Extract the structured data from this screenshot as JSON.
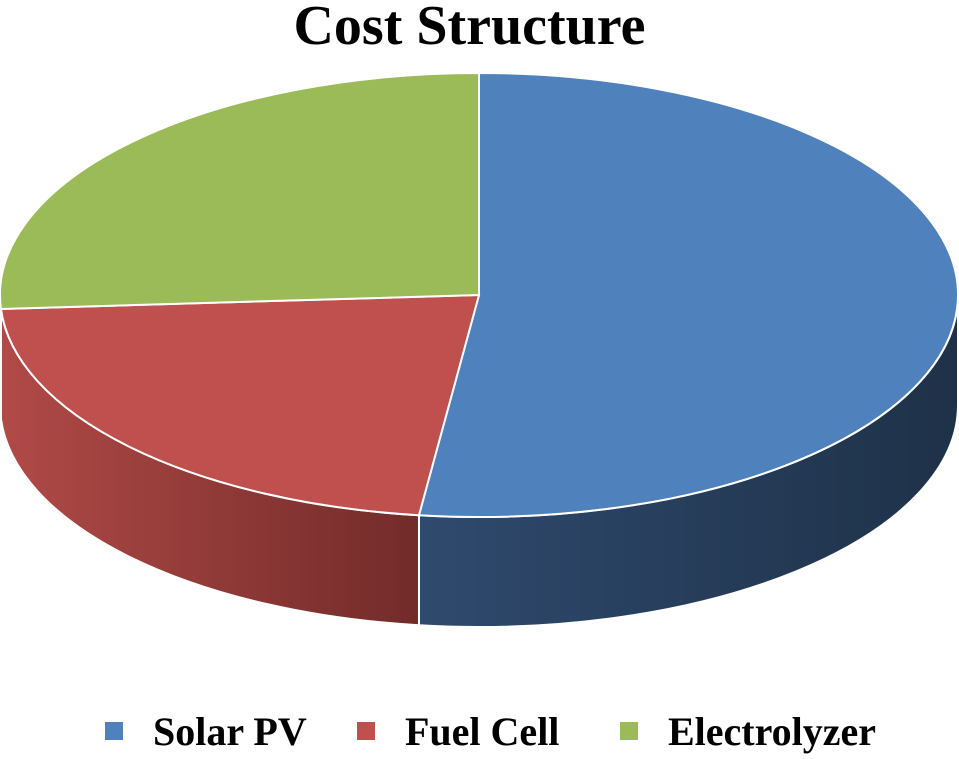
{
  "chart_data": {
    "type": "pie",
    "title": "Cost Structure",
    "series": [
      {
        "label": "Solar PV",
        "value": 52,
        "color": "#4F81BD"
      },
      {
        "label": "Fuel Cell",
        "value": 22,
        "color": "#C0504D"
      },
      {
        "label": "Electrolyzer",
        "value": 26,
        "color": "#9BBB59"
      }
    ],
    "legend_position": "bottom",
    "style": "3d"
  }
}
